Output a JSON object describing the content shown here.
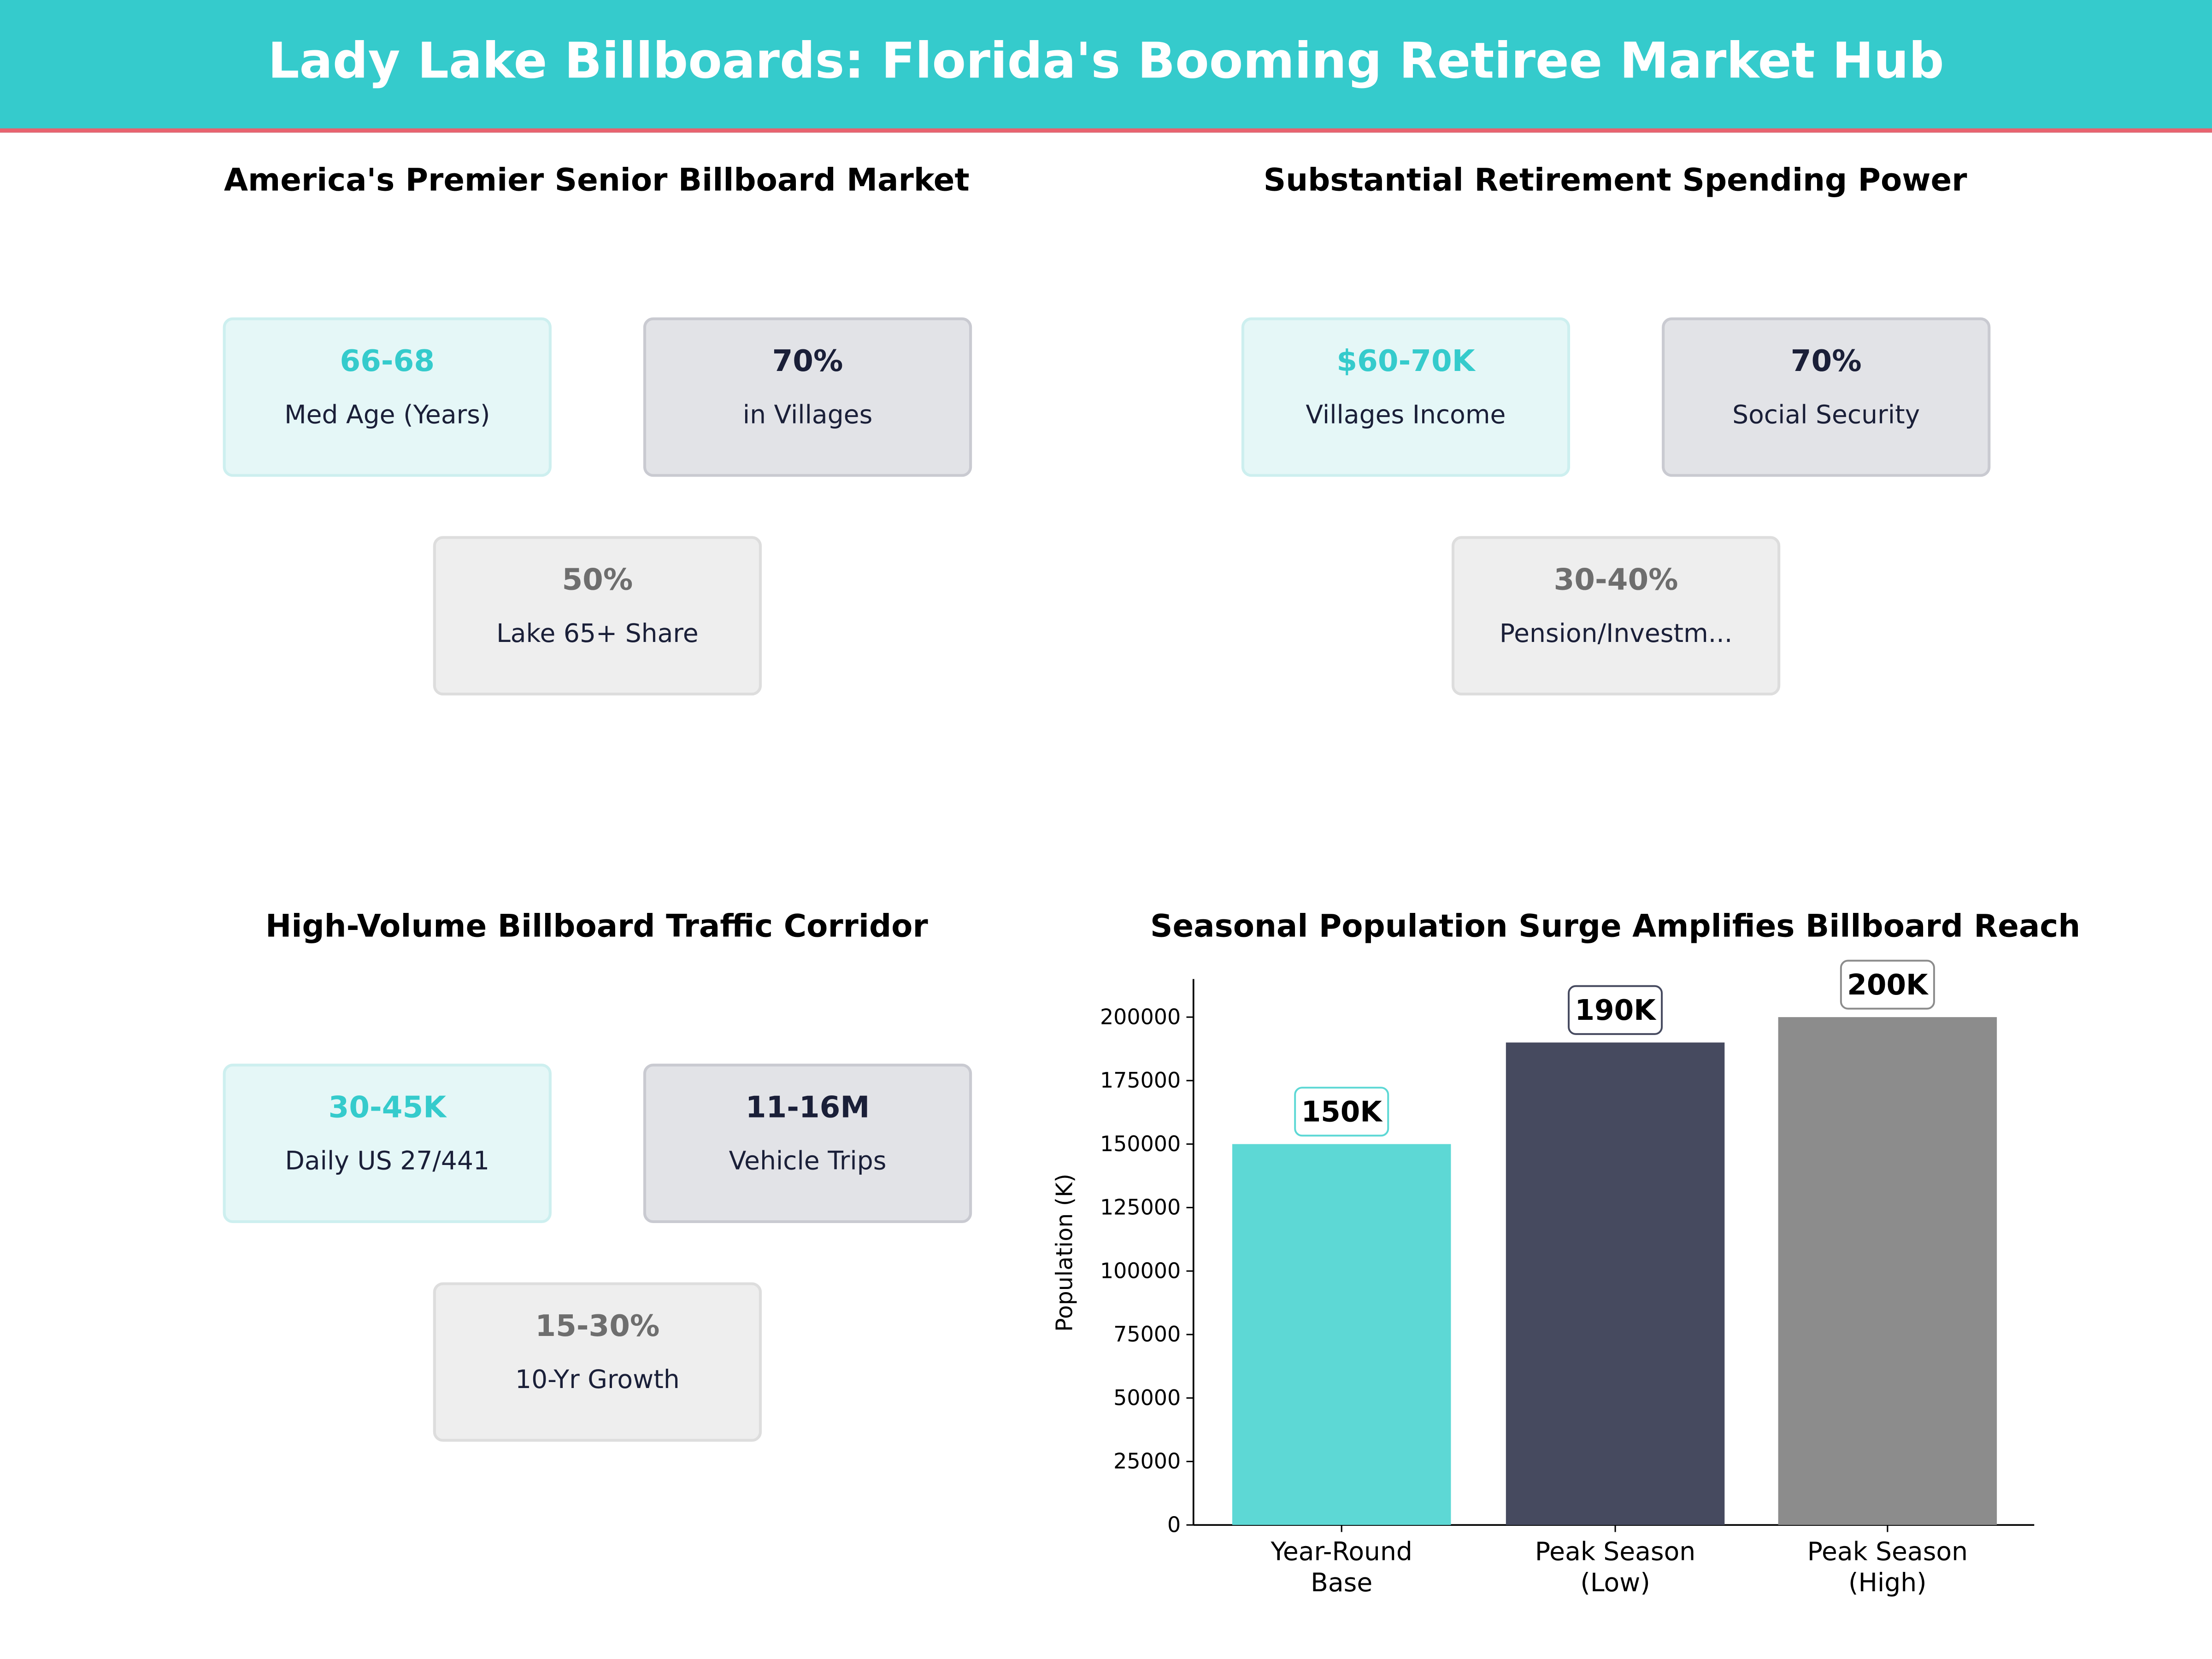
{
  "header": {
    "title": "Lady Lake Billboards: Florida's Booming Retiree Market Hub"
  },
  "panels": [
    {
      "title": "America's Premier Senior Billboard Market",
      "cards": [
        {
          "value": "66-68",
          "label": "Med Age (Years)",
          "style": "teal"
        },
        {
          "value": "70%",
          "label": "in Villages",
          "style": "dark"
        },
        {
          "value": "50%",
          "label": "Lake 65+ Share",
          "style": "gray"
        }
      ]
    },
    {
      "title": "Substantial Retirement Spending Power",
      "cards": [
        {
          "value": "$60-70K",
          "label": "Villages Income",
          "style": "teal"
        },
        {
          "value": "70%",
          "label": "Social Security",
          "style": "dark"
        },
        {
          "value": "30-40%",
          "label": "Pension/Investm...",
          "style": "gray"
        }
      ]
    },
    {
      "title": "High-Volume Billboard Traffic Corridor",
      "cards": [
        {
          "value": "30-45K",
          "label": "Daily US 27/441",
          "style": "teal"
        },
        {
          "value": "11-16M",
          "label": "Vehicle Trips",
          "style": "dark"
        },
        {
          "value": "15-30%",
          "label": "10-Yr Growth",
          "style": "gray"
        }
      ]
    }
  ],
  "colors": {
    "accent": "#35cbcc",
    "header_rule": "#e8636f",
    "dark": "#1a1f38"
  },
  "chart_data": {
    "type": "bar",
    "title": "Seasonal Population Surge Amplifies Billboard Reach",
    "xlabel": "",
    "ylabel": "Population (K)",
    "categories": [
      "Year-Round\nBase",
      "Peak Season\n(Low)",
      "Peak Season\n(High)"
    ],
    "values": [
      150000,
      190000,
      200000
    ],
    "data_labels": [
      "150K",
      "190K",
      "200K"
    ],
    "colors": [
      "#5dd8d5",
      "#464a5f",
      "#8c8c8c"
    ],
    "ylim": [
      0,
      215000
    ],
    "yticks": [
      0,
      25000,
      50000,
      75000,
      100000,
      125000,
      150000,
      175000,
      200000
    ],
    "grid": false
  }
}
